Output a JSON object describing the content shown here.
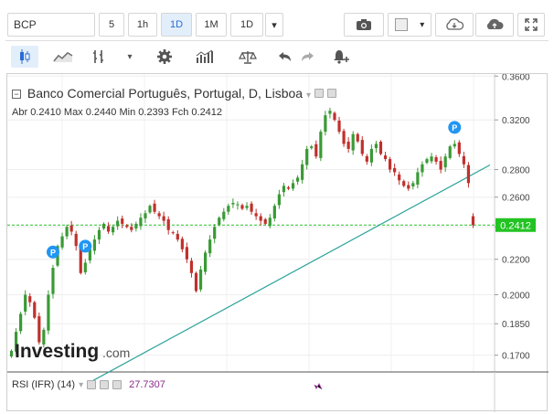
{
  "toolbar": {
    "symbol": "BCP",
    "intervals": [
      {
        "label": "5"
      },
      {
        "label": "1h"
      },
      {
        "label": "1D",
        "active": true
      },
      {
        "label": "1M"
      },
      {
        "label": "1D"
      }
    ],
    "dropdown_glyph": "▾",
    "icons_row1": [
      "camera-icon",
      "color-swatch-icon",
      "cloud-download-icon",
      "cloud-upload-icon",
      "fullscreen-icon"
    ],
    "icons_row2": [
      "candles-icon",
      "line-chart-icon",
      "indicators-icon",
      "settings-icon",
      "volume-bars-icon",
      "balance-icon",
      "undo-icon",
      "redo-icon",
      "alert-add-icon"
    ]
  },
  "legend": {
    "title": "Banco Comercial Português, Portugal, D, Lisboa",
    "ohlc": [
      {
        "label": "Abr",
        "value": "0.2410"
      },
      {
        "label": "Max",
        "value": "0.2440"
      },
      {
        "label": "Min",
        "value": "0.2393"
      },
      {
        "label": "Fch",
        "value": "0.2412"
      }
    ]
  },
  "rsi": {
    "label": "RSI (IFR) (14)",
    "value": "27.7307"
  },
  "watermark": {
    "brand": "Investing",
    "suffix": ".com"
  },
  "colors": {
    "up": "#3a9a35",
    "down": "#c0302c",
    "trendline": "#2aa39a",
    "last_price_line": "#2cbf2c",
    "last_price_bg": "#22c322",
    "marker_p": "#2196f3"
  },
  "chart_data": {
    "type": "candlestick",
    "title": "Banco Comercial Português, Portugal, D, Lisboa",
    "y_scale": "log",
    "ylim": [
      0.1625,
      0.362
    ],
    "y_ticks": [
      "0.3600",
      "0.3200",
      "0.2800",
      "0.2600",
      "0.2400",
      "0.2200",
      "0.2000",
      "0.1850",
      "0.1700"
    ],
    "last_price": "0.2412",
    "trendline": {
      "start": 0.158,
      "end": 0.2835
    },
    "markers": [
      {
        "label": "P",
        "bar": 9
      },
      {
        "label": "P",
        "bar": 16
      },
      {
        "label": "P",
        "bar": 96
      }
    ],
    "closes": [
      0.172,
      0.181,
      0.19,
      0.2,
      0.196,
      0.188,
      0.176,
      0.182,
      0.2,
      0.215,
      0.228,
      0.234,
      0.24,
      0.237,
      0.228,
      0.212,
      0.218,
      0.226,
      0.232,
      0.238,
      0.242,
      0.237,
      0.24,
      0.244,
      0.242,
      0.24,
      0.238,
      0.242,
      0.246,
      0.249,
      0.254,
      0.25,
      0.247,
      0.244,
      0.238,
      0.236,
      0.232,
      0.226,
      0.22,
      0.212,
      0.202,
      0.214,
      0.224,
      0.232,
      0.24,
      0.246,
      0.25,
      0.254,
      0.256,
      0.255,
      0.252,
      0.254,
      0.25,
      0.247,
      0.244,
      0.242,
      0.246,
      0.254,
      0.262,
      0.268,
      0.266,
      0.27,
      0.274,
      0.284,
      0.296,
      0.298,
      0.29,
      0.31,
      0.324,
      0.328,
      0.32,
      0.31,
      0.3,
      0.296,
      0.308,
      0.302,
      0.292,
      0.286,
      0.296,
      0.3,
      0.292,
      0.288,
      0.28,
      0.278,
      0.272,
      0.268,
      0.266,
      0.27,
      0.278,
      0.284,
      0.288,
      0.29,
      0.286,
      0.28,
      0.29,
      0.298,
      0.3,
      0.292,
      0.284,
      0.27,
      0.241
    ]
  }
}
